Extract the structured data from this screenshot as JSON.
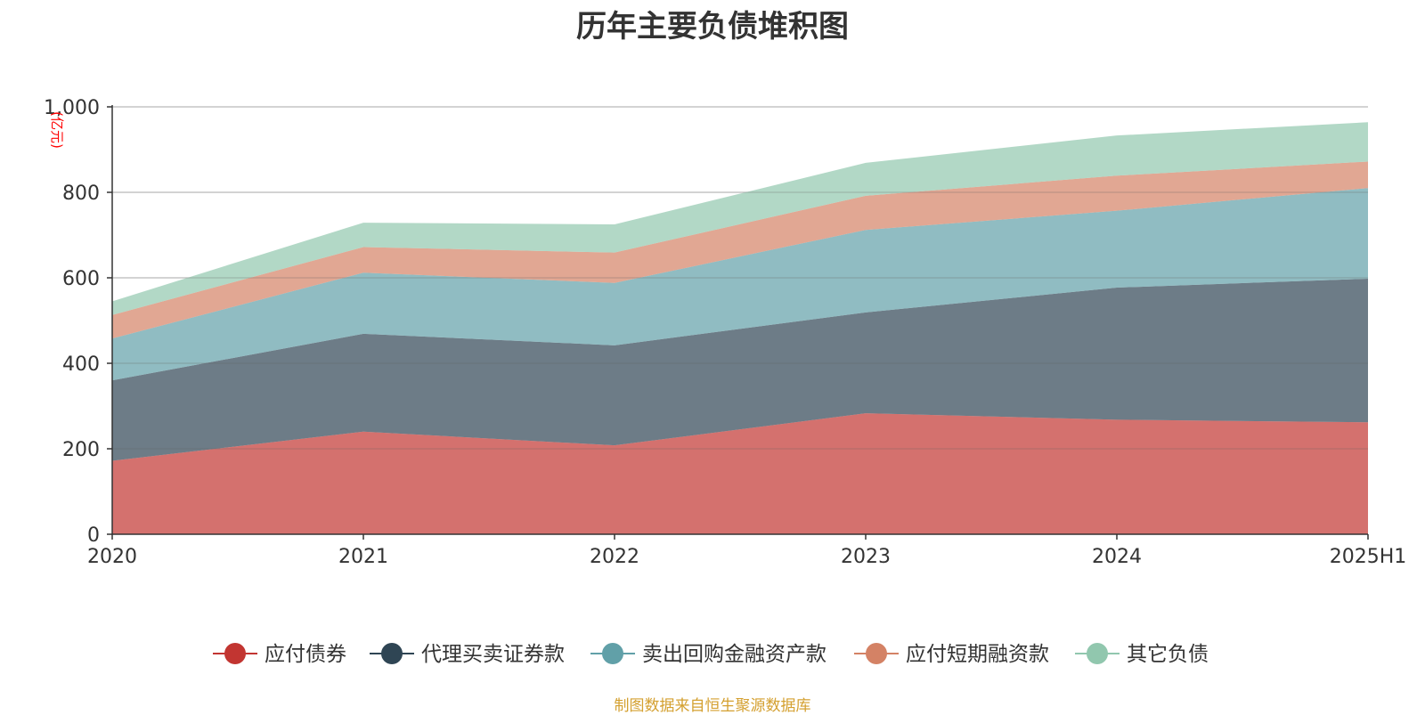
{
  "title": "历年主要负债堆积图",
  "footer": "制图数据来自恒生聚源数据库",
  "chart_data": {
    "type": "area",
    "stacked": true,
    "x": [
      "2020",
      "2021",
      "2022",
      "2023",
      "2024",
      "2025H1"
    ],
    "y_unit": "(亿元)",
    "ylim": [
      0,
      1000
    ],
    "yticks": [
      0,
      200,
      400,
      600,
      800,
      1000
    ],
    "ytick_labels": [
      "0",
      "200",
      "400",
      "600",
      "800",
      "1,000"
    ],
    "grid": true,
    "legend_position": "bottom",
    "series": [
      {
        "name": "应付债券",
        "color": "#c23531",
        "values": [
          172,
          240,
          208,
          283,
          268,
          262
        ]
      },
      {
        "name": "代理买卖证券款",
        "color": "#2f4554",
        "values": [
          188,
          229,
          234,
          236,
          309,
          336
        ]
      },
      {
        "name": "卖出回购金融资产款",
        "color": "#61a0a8",
        "values": [
          98,
          143,
          146,
          193,
          180,
          212
        ]
      },
      {
        "name": "应付短期融资款",
        "color": "#d48265",
        "values": [
          55,
          60,
          71,
          80,
          82,
          62
        ]
      },
      {
        "name": "其它负债",
        "color": "#91c7ae",
        "values": [
          32,
          57,
          66,
          77,
          94,
          92
        ]
      }
    ]
  }
}
